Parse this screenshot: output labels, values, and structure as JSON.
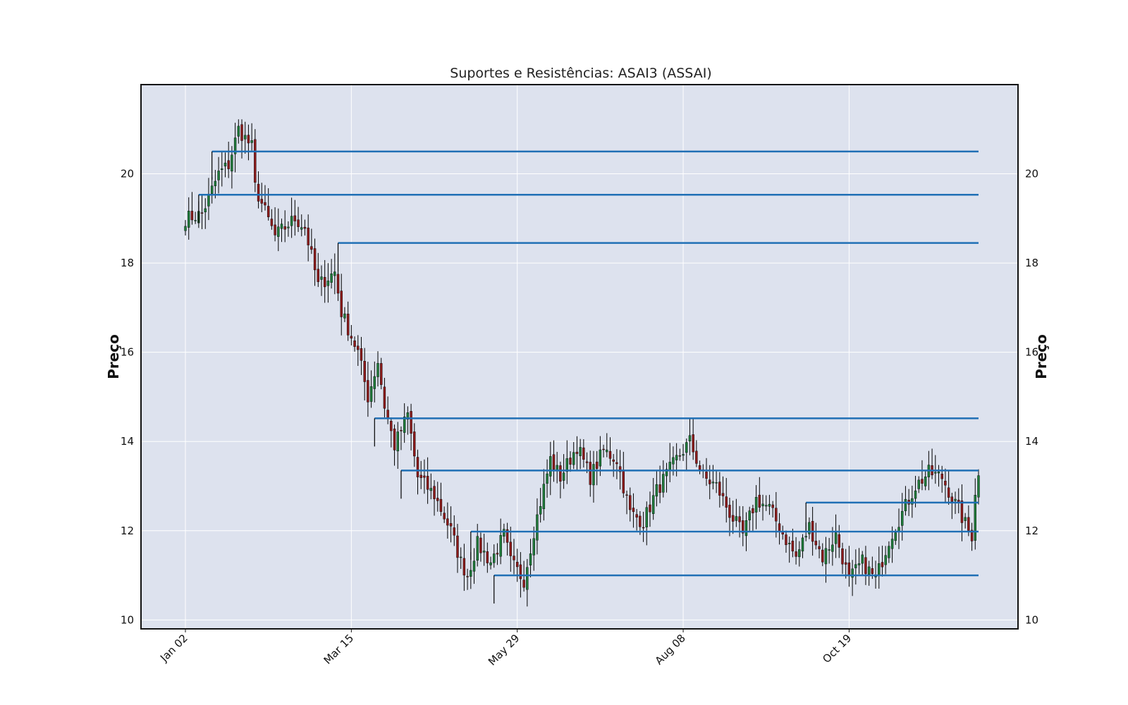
{
  "chart_data": {
    "type": "candlestick",
    "title": "Suportes e Resistências: ASAI3 (ASSAI)",
    "ylabel": "Preço",
    "ylabel_right": "Preço",
    "xlabel": "",
    "ylim": [
      9.8,
      22.0
    ],
    "yticks": [
      10,
      12,
      14,
      16,
      18,
      20
    ],
    "xticks": [
      {
        "label": "Jan 02",
        "index": 0
      },
      {
        "label": "Mar 15",
        "index": 50
      },
      {
        "label": "May 29",
        "index": 100
      },
      {
        "label": "Aug 08",
        "index": 150
      },
      {
        "label": "Oct 19",
        "index": 200
      }
    ],
    "grid": true,
    "colors": {
      "background": "#dde2ee",
      "grid": "#ffffff",
      "up": "#1f7a3a",
      "down": "#8b1a1a",
      "wick": "#000000",
      "level": "#1f6fb5"
    },
    "levels": [
      {
        "price": 20.5,
        "start_index": 8
      },
      {
        "price": 19.53,
        "start_index": 4
      },
      {
        "price": 18.45,
        "start_index": 46
      },
      {
        "price": 14.52,
        "start_index": 57
      },
      {
        "price": 13.35,
        "start_index": 65
      },
      {
        "price": 12.63,
        "start_index": 187
      },
      {
        "price": 11.98,
        "start_index": 86
      },
      {
        "price": 11.0,
        "start_index": 93
      }
    ],
    "anchors": [
      [
        0,
        19.0
      ],
      [
        5,
        19.1
      ],
      [
        10,
        20.0
      ],
      [
        13,
        20.2
      ],
      [
        16,
        21.0
      ],
      [
        20,
        20.6
      ],
      [
        21,
        19.7
      ],
      [
        27,
        18.6
      ],
      [
        33,
        19.0
      ],
      [
        36,
        18.8
      ],
      [
        40,
        17.5
      ],
      [
        45,
        17.8
      ],
      [
        47,
        16.9
      ],
      [
        52,
        16.0
      ],
      [
        55,
        15.0
      ],
      [
        58,
        15.8
      ],
      [
        60,
        14.8
      ],
      [
        63,
        13.9
      ],
      [
        67,
        14.6
      ],
      [
        70,
        13.2
      ],
      [
        75,
        12.8
      ],
      [
        80,
        12.0
      ],
      [
        83,
        11.3
      ],
      [
        85,
        11.0
      ],
      [
        88,
        11.7
      ],
      [
        92,
        11.3
      ],
      [
        96,
        11.9
      ],
      [
        98,
        11.3
      ],
      [
        102,
        10.9
      ],
      [
        105,
        12.0
      ],
      [
        110,
        13.6
      ],
      [
        113,
        13.2
      ],
      [
        118,
        13.9
      ],
      [
        122,
        13.2
      ],
      [
        126,
        13.8
      ],
      [
        130,
        13.6
      ],
      [
        134,
        12.4
      ],
      [
        138,
        12.2
      ],
      [
        142,
        12.9
      ],
      [
        148,
        13.6
      ],
      [
        152,
        14.0
      ],
      [
        156,
        13.2
      ],
      [
        160,
        13.0
      ],
      [
        164,
        12.4
      ],
      [
        168,
        11.9
      ],
      [
        172,
        12.7
      ],
      [
        176,
        12.5
      ],
      [
        181,
        11.8
      ],
      [
        184,
        11.4
      ],
      [
        188,
        12.1
      ],
      [
        192,
        11.4
      ],
      [
        196,
        11.9
      ],
      [
        200,
        10.9
      ],
      [
        204,
        11.3
      ],
      [
        208,
        10.9
      ],
      [
        212,
        11.8
      ],
      [
        216,
        12.4
      ],
      [
        220,
        13.0
      ],
      [
        224,
        13.3
      ],
      [
        228,
        13.2
      ],
      [
        232,
        12.6
      ],
      [
        236,
        12.0
      ],
      [
        237,
        11.9
      ],
      [
        238,
        12.9
      ],
      [
        239,
        13.2
      ]
    ]
  }
}
